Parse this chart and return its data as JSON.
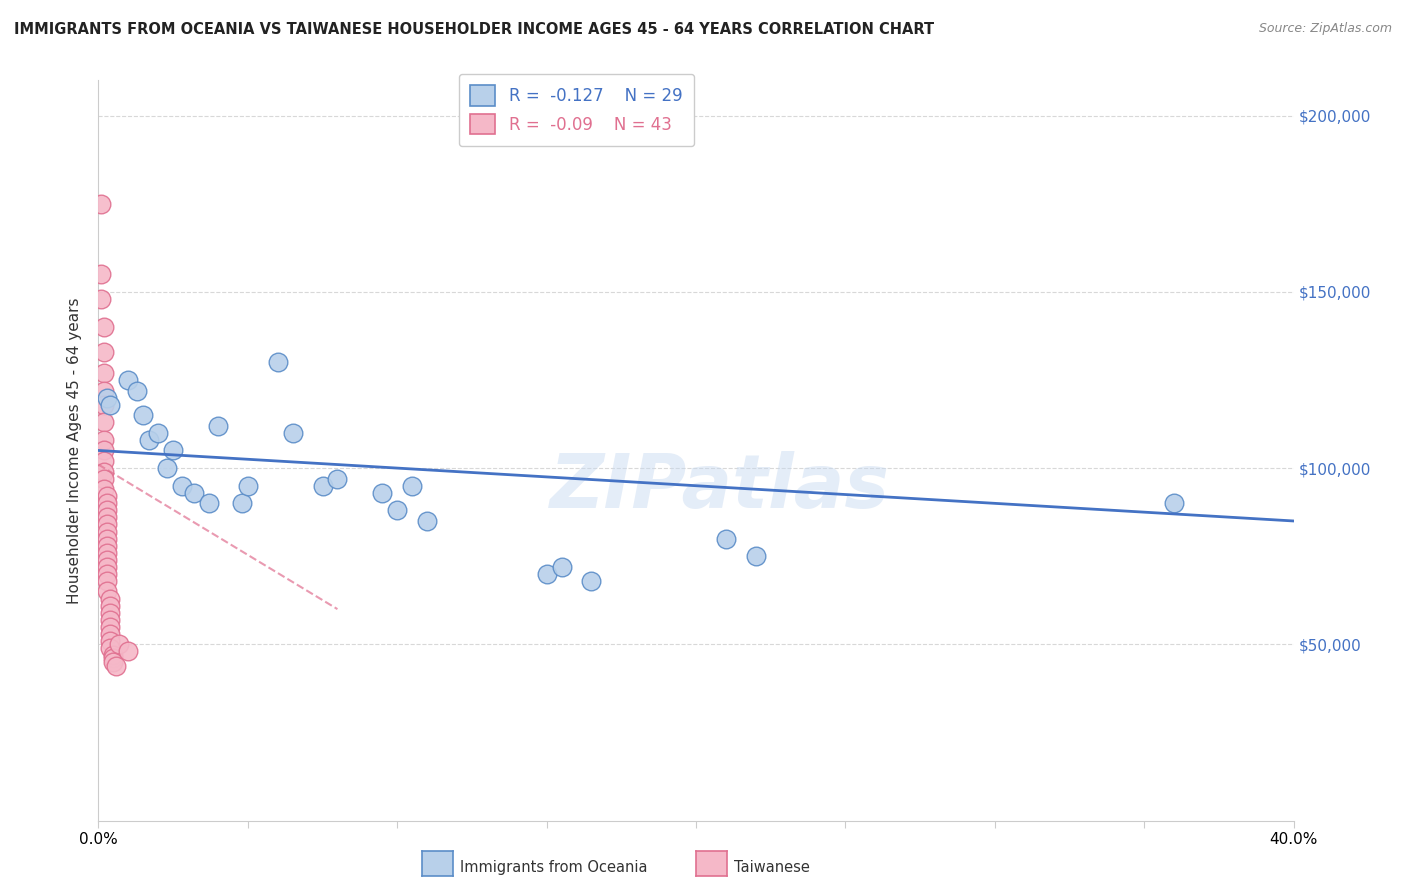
{
  "title": "IMMIGRANTS FROM OCEANIA VS TAIWANESE HOUSEHOLDER INCOME AGES 45 - 64 YEARS CORRELATION CHART",
  "source": "Source: ZipAtlas.com",
  "ylabel": "Householder Income Ages 45 - 64 years",
  "xmin": 0.0,
  "xmax": 0.4,
  "ymin": 0,
  "ymax": 210000,
  "yticks": [
    50000,
    100000,
    150000,
    200000
  ],
  "ytick_labels": [
    "$50,000",
    "$100,000",
    "$150,000",
    "$200,000"
  ],
  "xticks": [
    0.0,
    0.05,
    0.1,
    0.15,
    0.2,
    0.25,
    0.3,
    0.35,
    0.4
  ],
  "oceania_R": -0.127,
  "oceania_N": 29,
  "taiwanese_R": -0.09,
  "taiwanese_N": 43,
  "oceania_color": "#b8d0ea",
  "taiwanese_color": "#f5b8c8",
  "oceania_edge_color": "#5b8dc8",
  "taiwanese_edge_color": "#e07090",
  "oceania_line_color": "#4472c4",
  "taiwanese_line_color": "#e07090",
  "background_color": "#ffffff",
  "watermark": "ZIPatlas",
  "oceania_points_x": [
    0.003,
    0.004,
    0.01,
    0.013,
    0.015,
    0.017,
    0.02,
    0.023,
    0.025,
    0.028,
    0.032,
    0.037,
    0.04,
    0.048,
    0.05,
    0.06,
    0.065,
    0.075,
    0.08,
    0.095,
    0.1,
    0.105,
    0.11,
    0.15,
    0.155,
    0.165,
    0.21,
    0.22,
    0.36
  ],
  "oceania_points_y": [
    120000,
    118000,
    125000,
    122000,
    115000,
    108000,
    110000,
    100000,
    105000,
    95000,
    93000,
    90000,
    112000,
    90000,
    95000,
    130000,
    110000,
    95000,
    97000,
    93000,
    88000,
    95000,
    85000,
    70000,
    72000,
    68000,
    80000,
    75000,
    90000
  ],
  "taiwanese_points_x": [
    0.001,
    0.001,
    0.001,
    0.002,
    0.002,
    0.002,
    0.002,
    0.002,
    0.002,
    0.002,
    0.002,
    0.002,
    0.002,
    0.002,
    0.002,
    0.003,
    0.003,
    0.003,
    0.003,
    0.003,
    0.003,
    0.003,
    0.003,
    0.003,
    0.003,
    0.003,
    0.003,
    0.003,
    0.003,
    0.004,
    0.004,
    0.004,
    0.004,
    0.004,
    0.004,
    0.004,
    0.004,
    0.005,
    0.005,
    0.005,
    0.006,
    0.007,
    0.01
  ],
  "taiwanese_points_y": [
    175000,
    155000,
    148000,
    140000,
    133000,
    127000,
    122000,
    118000,
    113000,
    108000,
    105000,
    102000,
    99000,
    97000,
    94000,
    92000,
    90000,
    88000,
    86000,
    84000,
    82000,
    80000,
    78000,
    76000,
    74000,
    72000,
    70000,
    68000,
    65000,
    63000,
    61000,
    59000,
    57000,
    55000,
    53000,
    51000,
    49000,
    47000,
    46000,
    45000,
    44000,
    50000,
    48000
  ],
  "oceania_line_x": [
    0.0,
    0.4
  ],
  "oceania_line_y": [
    105000,
    85000
  ],
  "taiwanese_line_x": [
    0.0,
    0.08
  ],
  "taiwanese_line_y": [
    101000,
    60000
  ],
  "grid_color": "#d8d8d8",
  "spine_color": "#cccccc"
}
